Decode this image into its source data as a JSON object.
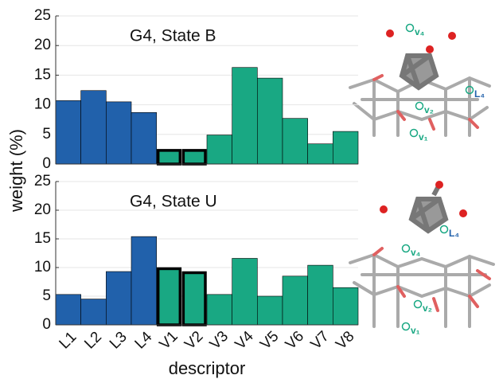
{
  "chart_data": [
    {
      "type": "bar",
      "annotation": "G4, State B",
      "ylabel": "weight (%)",
      "values": [
        10.7,
        12.4,
        10.5,
        8.7,
        2.3,
        2.3,
        4.9,
        16.3,
        14.5,
        7.7,
        3.4,
        5.5
      ],
      "colors": [
        "#2161ab",
        "#2161ab",
        "#2161ab",
        "#2161ab",
        "#19a883",
        "#19a883",
        "#19a883",
        "#19a883",
        "#19a883",
        "#19a883",
        "#19a883",
        "#19a883"
      ],
      "bold_edges": [
        4,
        5
      ],
      "ylim": [
        0,
        25
      ],
      "yticks": [
        0,
        5,
        10,
        15,
        20,
        25
      ],
      "grid": true,
      "molecule_labels": [
        "v₄",
        "L₄",
        "v₂",
        "v₁"
      ]
    },
    {
      "type": "bar",
      "annotation": "G4, State U",
      "xlabel": "descriptor",
      "categories": [
        "L1",
        "L2",
        "L3",
        "L4",
        "V1",
        "V2",
        "V3",
        "V4",
        "V5",
        "V6",
        "V7",
        "V8"
      ],
      "values": [
        5.3,
        4.5,
        9.3,
        15.4,
        9.8,
        9.1,
        5.3,
        11.6,
        5.0,
        8.5,
        10.4,
        6.5
      ],
      "colors": [
        "#2161ab",
        "#2161ab",
        "#2161ab",
        "#2161ab",
        "#19a883",
        "#19a883",
        "#19a883",
        "#19a883",
        "#19a883",
        "#19a883",
        "#19a883",
        "#19a883"
      ],
      "bold_edges": [
        4,
        5
      ],
      "ylim": [
        0,
        25
      ],
      "yticks": [
        0,
        5,
        10,
        15,
        20,
        25
      ],
      "grid": true,
      "molecule_labels": [
        "L₄",
        "v₄",
        "v₂",
        "v₁"
      ]
    }
  ]
}
